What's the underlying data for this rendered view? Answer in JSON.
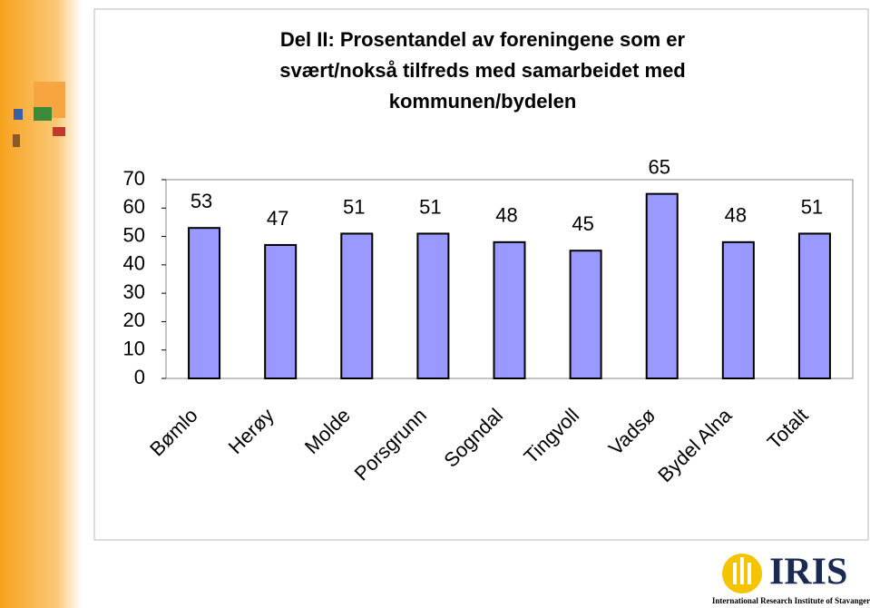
{
  "chart_data": {
    "type": "bar",
    "title": [
      "Del II: Prosentandel av foreningene som er",
      "svært/nokså tilfreds med samarbeidet med",
      "kommunen/bydelen"
    ],
    "categories": [
      "Bømlo",
      "Herøy",
      "Molde",
      "Porsgrunn",
      "Sogndal",
      "Tingvoll",
      "Vadsø",
      "Bydel Alna",
      "Totalt"
    ],
    "values": [
      53,
      47,
      51,
      51,
      48,
      45,
      65,
      48,
      51
    ],
    "color": "#9999ff",
    "ylim": [
      0,
      70
    ],
    "yticks": [
      0,
      10,
      20,
      30,
      40,
      50,
      60,
      70
    ],
    "grid": false
  },
  "logo": {
    "name": "IRIS",
    "caption": "International Research Institute of Stavanger"
  }
}
